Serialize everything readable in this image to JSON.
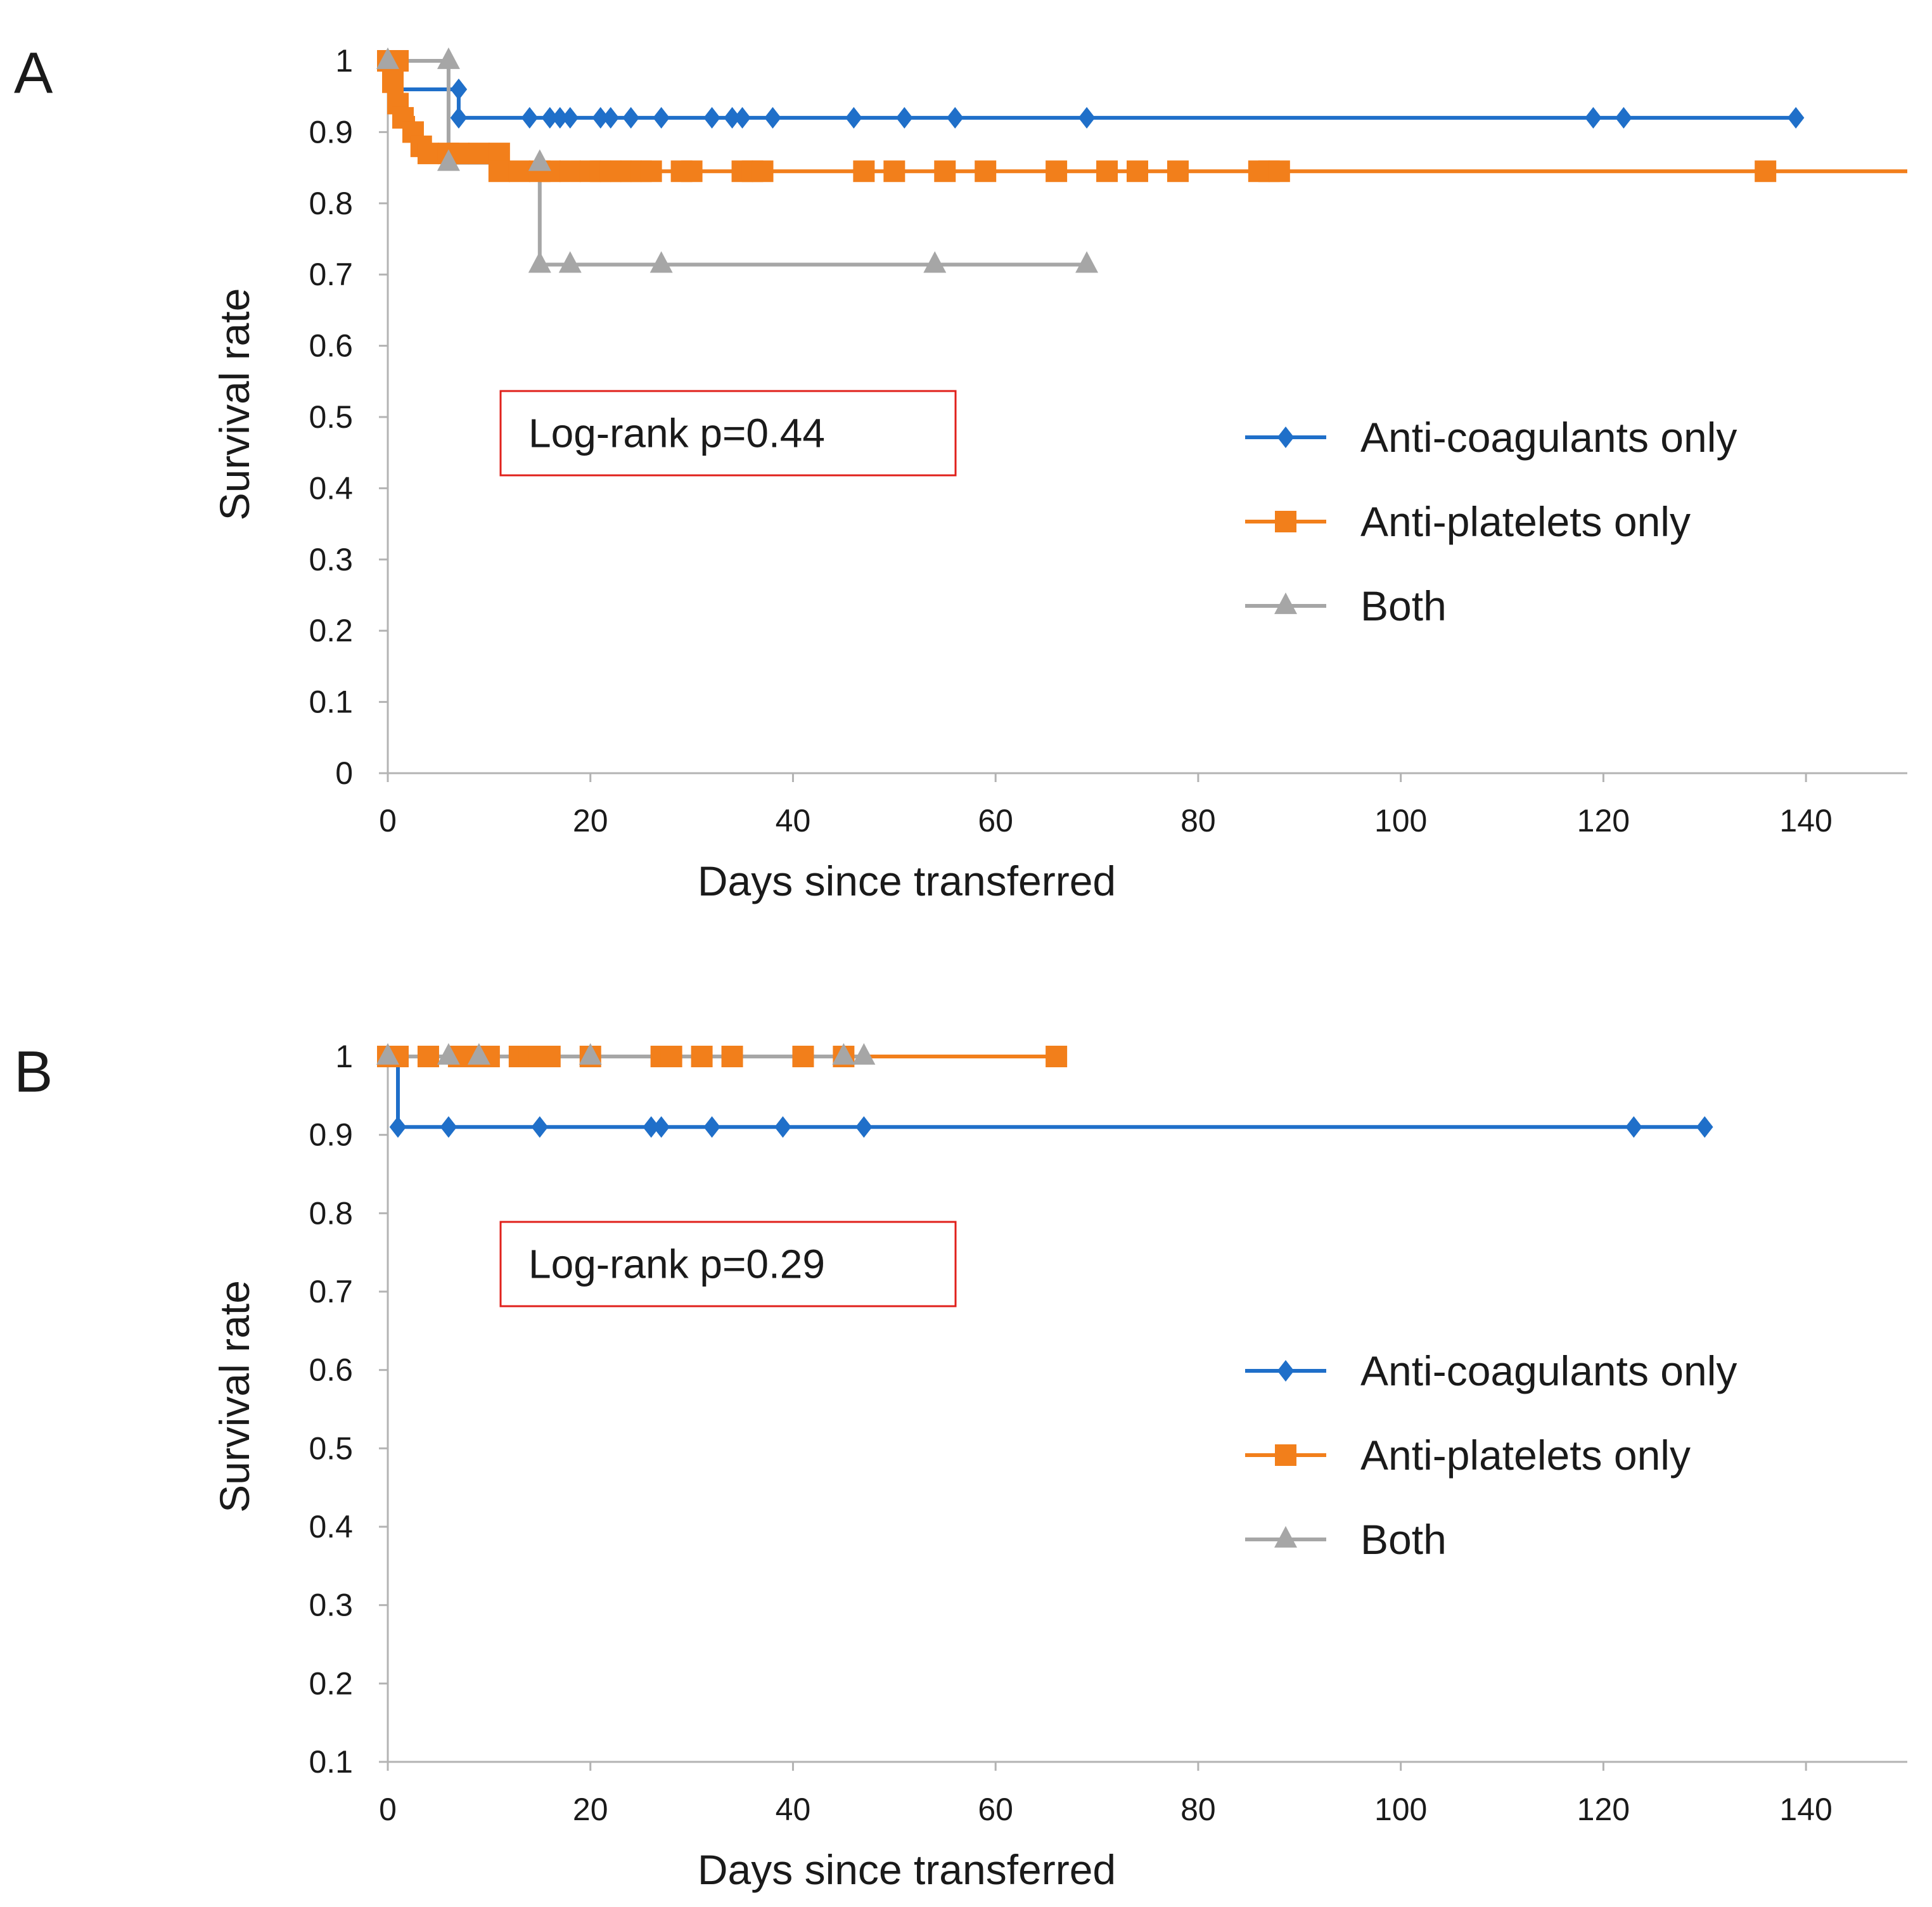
{
  "chart_data": [
    {
      "panel": "A",
      "type": "line",
      "subtype": "kaplan-meier",
      "xlabel": "Days since transferred",
      "ylabel": "Survival rate",
      "xlim": [
        0,
        150
      ],
      "ylim": [
        0,
        1
      ],
      "xticks": [
        0,
        20,
        40,
        60,
        80,
        100,
        120,
        140
      ],
      "yticks": [
        0,
        0.1,
        0.2,
        0.3,
        0.4,
        0.5,
        0.6,
        0.7,
        0.8,
        0.9,
        1
      ],
      "ytick_labels": [
        "0",
        "0.1",
        "0.2",
        "0.3",
        "0.4",
        "0.5",
        "0.6",
        "0.7",
        "0.8",
        "0.9",
        "1"
      ],
      "annotation": "Log-rank p=0.44",
      "series": [
        {
          "name": "Anti-coagulants only",
          "color": "#1f6fc9",
          "marker": "diamond",
          "step": [
            [
              0,
              1
            ],
            [
              1,
              1
            ],
            [
              1,
              0.96
            ],
            [
              7,
              0.96
            ],
            [
              7,
              0.92
            ],
            [
              139,
              0.92
            ]
          ],
          "markers": [
            [
              0,
              1
            ],
            [
              7,
              0.96
            ],
            [
              7,
              0.92
            ],
            [
              14,
              0.92
            ],
            [
              16,
              0.92
            ],
            [
              17,
              0.92
            ],
            [
              18,
              0.92
            ],
            [
              21,
              0.92
            ],
            [
              22,
              0.92
            ],
            [
              24,
              0.92
            ],
            [
              27,
              0.92
            ],
            [
              32,
              0.92
            ],
            [
              34,
              0.92
            ],
            [
              35,
              0.92
            ],
            [
              38,
              0.92
            ],
            [
              46,
              0.92
            ],
            [
              51,
              0.92
            ],
            [
              56,
              0.92
            ],
            [
              69,
              0.92
            ],
            [
              119,
              0.92
            ],
            [
              122,
              0.92
            ],
            [
              139,
              0.92
            ]
          ]
        },
        {
          "name": "Anti-platelets only",
          "color": "#f27f1b",
          "marker": "square",
          "step": [
            [
              0,
              1
            ],
            [
              0.5,
              1
            ],
            [
              0.5,
              0.97
            ],
            [
              1,
              0.97
            ],
            [
              1,
              0.94
            ],
            [
              1.5,
              0.94
            ],
            [
              1.5,
              0.92
            ],
            [
              2.5,
              0.92
            ],
            [
              2.5,
              0.9
            ],
            [
              3.3,
              0.9
            ],
            [
              3.3,
              0.88
            ],
            [
              4,
              0.88
            ],
            [
              4,
              0.87
            ],
            [
              11,
              0.87
            ],
            [
              11,
              0.845
            ],
            [
              150,
              0.845
            ]
          ],
          "markers": [
            [
              0,
              1
            ],
            [
              0.5,
              0.97
            ],
            [
              1,
              1
            ],
            [
              1,
              0.94
            ],
            [
              1.5,
              0.92
            ],
            [
              2.5,
              0.9
            ],
            [
              3.3,
              0.88
            ],
            [
              4,
              0.87
            ],
            [
              6,
              0.87
            ],
            [
              7,
              0.87
            ],
            [
              9,
              0.87
            ],
            [
              11,
              0.87
            ],
            [
              11,
              0.845
            ],
            [
              13,
              0.845
            ],
            [
              15,
              0.845
            ],
            [
              16,
              0.845
            ],
            [
              18,
              0.845
            ],
            [
              20,
              0.845
            ],
            [
              21,
              0.845
            ],
            [
              22,
              0.845
            ],
            [
              23,
              0.845
            ],
            [
              24,
              0.845
            ],
            [
              25,
              0.845
            ],
            [
              26,
              0.845
            ],
            [
              29,
              0.845
            ],
            [
              30,
              0.845
            ],
            [
              35,
              0.845
            ],
            [
              36,
              0.845
            ],
            [
              37,
              0.845
            ],
            [
              47,
              0.845
            ],
            [
              50,
              0.845
            ],
            [
              55,
              0.845
            ],
            [
              59,
              0.845
            ],
            [
              66,
              0.845
            ],
            [
              71,
              0.845
            ],
            [
              74,
              0.845
            ],
            [
              78,
              0.845
            ],
            [
              86,
              0.845
            ],
            [
              87,
              0.845
            ],
            [
              88,
              0.845
            ],
            [
              136,
              0.845
            ]
          ]
        },
        {
          "name": "Both",
          "color": "#a6a6a6",
          "marker": "triangle",
          "step": [
            [
              0,
              1
            ],
            [
              6,
              1
            ],
            [
              6,
              0.857
            ],
            [
              15,
              0.857
            ],
            [
              15,
              0.714
            ],
            [
              69,
              0.714
            ]
          ],
          "markers": [
            [
              0,
              1
            ],
            [
              6,
              1
            ],
            [
              6,
              0.857
            ],
            [
              15,
              0.857
            ],
            [
              15,
              0.714
            ],
            [
              18,
              0.714
            ],
            [
              27,
              0.714
            ],
            [
              54,
              0.714
            ],
            [
              69,
              0.714
            ]
          ]
        }
      ]
    },
    {
      "panel": "B",
      "type": "line",
      "subtype": "kaplan-meier",
      "xlabel": "Days since transferred",
      "ylabel": "Survival rate",
      "xlim": [
        0,
        150
      ],
      "ylim": [
        0.1,
        1
      ],
      "xticks": [
        0,
        20,
        40,
        60,
        80,
        100,
        120,
        140
      ],
      "yticks": [
        0.1,
        0.2,
        0.3,
        0.4,
        0.5,
        0.6,
        0.7,
        0.8,
        0.9,
        1
      ],
      "ytick_labels": [
        "0.1",
        "0.2",
        "0.3",
        "0.4",
        "0.5",
        "0.6",
        "0.7",
        "0.8",
        "0.9",
        "1"
      ],
      "annotation": "Log-rank p=0.29",
      "series": [
        {
          "name": "Anti-coagulants only",
          "color": "#1f6fc9",
          "marker": "diamond",
          "step": [
            [
              0,
              1
            ],
            [
              1,
              1
            ],
            [
              1,
              0.91
            ],
            [
              130,
              0.91
            ]
          ],
          "markers": [
            [
              1,
              1
            ],
            [
              1,
              0.91
            ],
            [
              6,
              0.91
            ],
            [
              15,
              0.91
            ],
            [
              26,
              0.91
            ],
            [
              27,
              0.91
            ],
            [
              32,
              0.91
            ],
            [
              39,
              0.91
            ],
            [
              47,
              0.91
            ],
            [
              123,
              0.91
            ],
            [
              130,
              0.91
            ]
          ]
        },
        {
          "name": "Anti-platelets only",
          "color": "#f27f1b",
          "marker": "square",
          "step": [
            [
              0,
              1
            ],
            [
              66,
              1
            ]
          ],
          "markers": [
            [
              0,
              1
            ],
            [
              1,
              1
            ],
            [
              4,
              1
            ],
            [
              7,
              1
            ],
            [
              9,
              1
            ],
            [
              10,
              1
            ],
            [
              13,
              1
            ],
            [
              14,
              1
            ],
            [
              15,
              1
            ],
            [
              16,
              1
            ],
            [
              20,
              1
            ],
            [
              27,
              1
            ],
            [
              28,
              1
            ],
            [
              31,
              1
            ],
            [
              34,
              1
            ],
            [
              41,
              1
            ],
            [
              45,
              1
            ],
            [
              66,
              1
            ]
          ]
        },
        {
          "name": "Both",
          "color": "#a6a6a6",
          "marker": "triangle",
          "step": [
            [
              0,
              1
            ],
            [
              47,
              1
            ]
          ],
          "markers": [
            [
              0,
              1
            ],
            [
              6,
              1
            ],
            [
              9,
              1
            ],
            [
              20,
              1
            ],
            [
              45,
              1
            ],
            [
              47,
              1
            ]
          ]
        }
      ]
    }
  ]
}
